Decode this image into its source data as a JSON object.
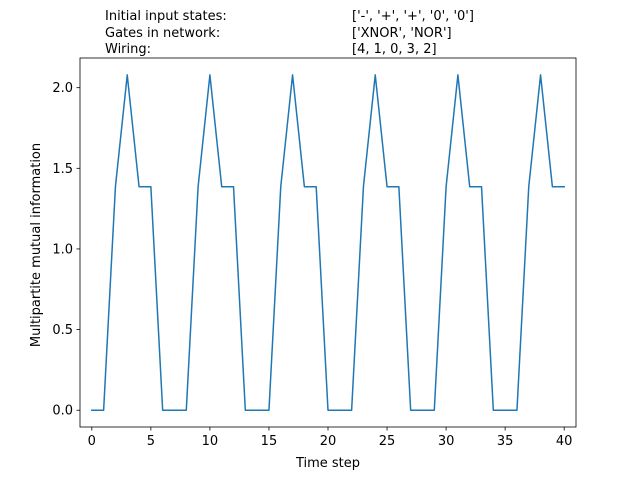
{
  "info": {
    "rows": [
      {
        "label": "Initial input states:",
        "value": "['-', '+', '+', '0', '0']"
      },
      {
        "label": "Gates in network:",
        "value": "['XNOR', 'NOR']"
      },
      {
        "label": "Wiring:",
        "value": "[4, 1, 0, 3, 2]"
      }
    ]
  },
  "chart_data": {
    "type": "line",
    "title": "",
    "xlabel": "Time step",
    "ylabel": "Multipartite mutual information",
    "xlim": [
      -1.0,
      41.0
    ],
    "ylim": [
      -0.104,
      2.184
    ],
    "xticks": [
      0,
      5,
      10,
      15,
      20,
      25,
      30,
      35,
      40
    ],
    "xtick_labels": [
      "0",
      "5",
      "10",
      "15",
      "20",
      "25",
      "30",
      "35",
      "40"
    ],
    "yticks": [
      0.0,
      0.5,
      1.0,
      1.5,
      2.0
    ],
    "ytick_labels": [
      "0.0",
      "0.5",
      "1.0",
      "1.5",
      "2.0"
    ],
    "grid": false,
    "legend": "none",
    "series": [
      {
        "color": "#1f77b4",
        "x": [
          0,
          1,
          2,
          3,
          4,
          5,
          6,
          7,
          8,
          9,
          10,
          11,
          12,
          13,
          14,
          15,
          16,
          17,
          18,
          19,
          20,
          21,
          22,
          23,
          24,
          25,
          26,
          27,
          28,
          29,
          30,
          31,
          32,
          33,
          34,
          35,
          36,
          37,
          38,
          39,
          40
        ],
        "y": [
          0,
          0,
          1.386,
          2.079,
          1.386,
          1.386,
          0,
          0,
          0,
          1.386,
          2.079,
          1.386,
          1.386,
          0,
          0,
          0,
          1.386,
          2.079,
          1.386,
          1.386,
          0,
          0,
          0,
          1.386,
          2.079,
          1.386,
          1.386,
          0,
          0,
          0,
          1.386,
          2.079,
          1.386,
          1.386,
          0,
          0,
          0,
          1.386,
          2.079,
          1.386,
          1.386
        ]
      }
    ]
  }
}
